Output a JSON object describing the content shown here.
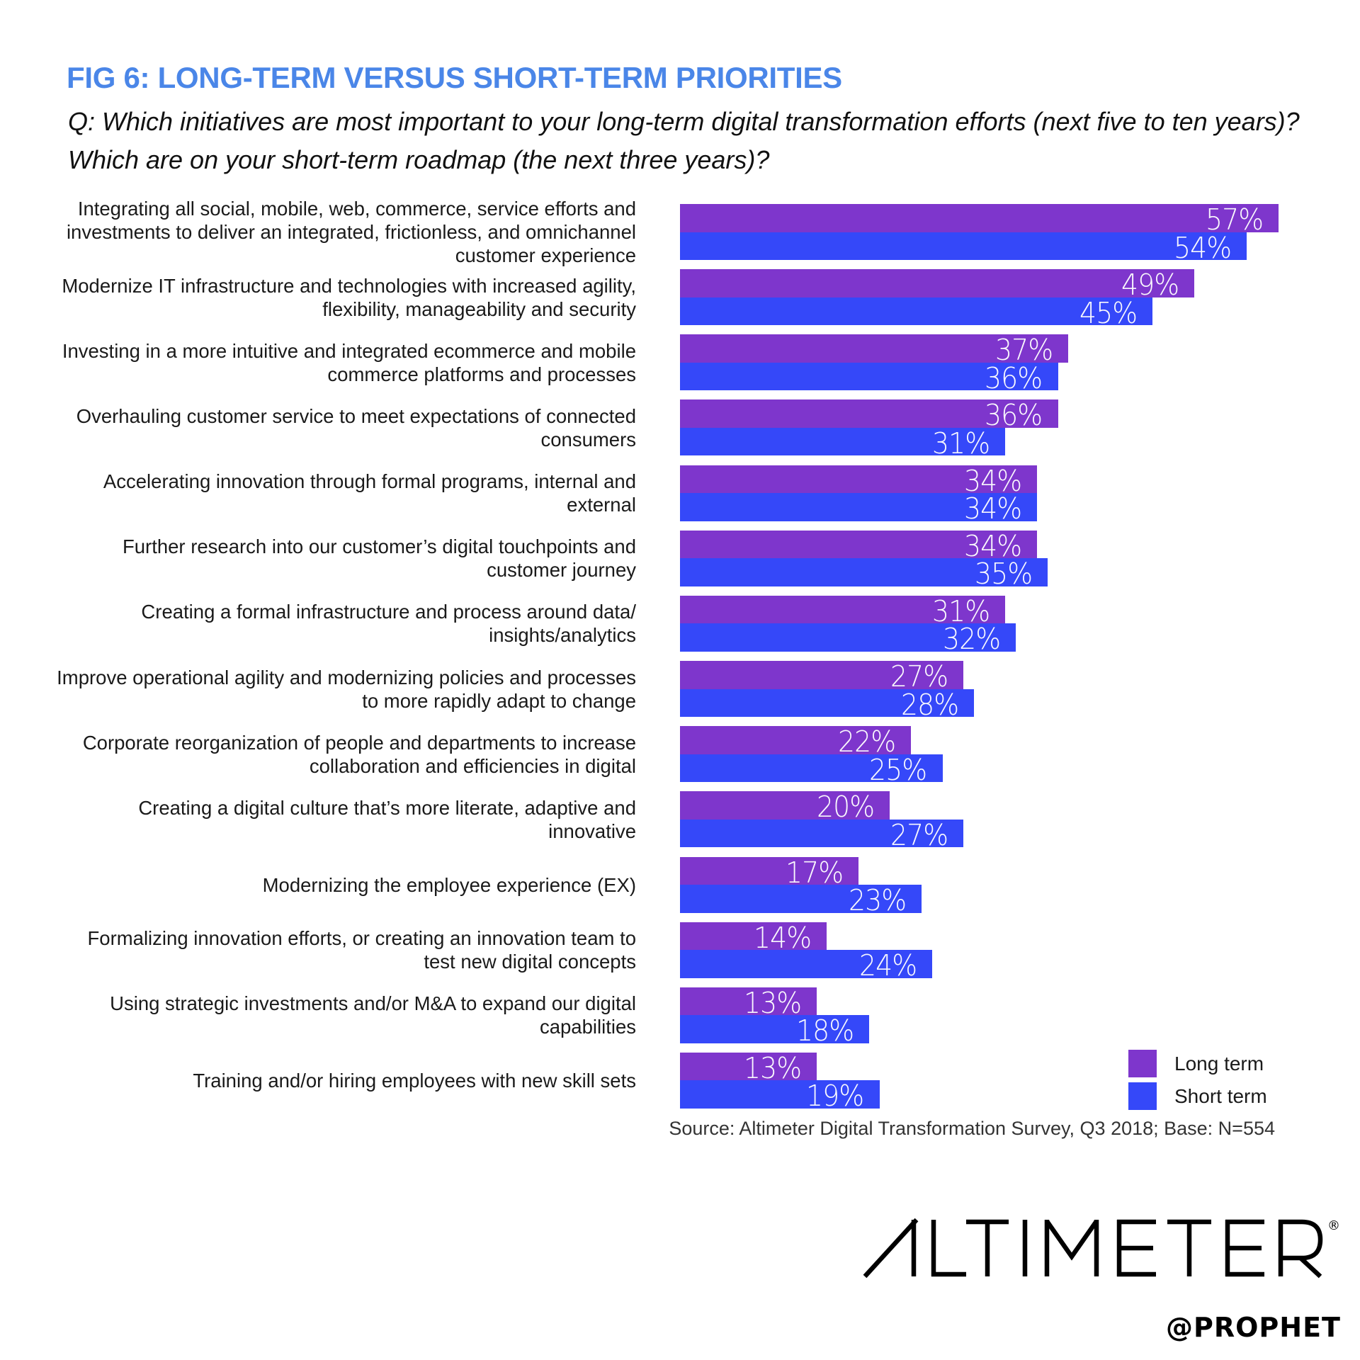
{
  "title": "FIG 6: LONG-TERM VERSUS SHORT-TERM PRIORITIES",
  "question": "Q: Which initiatives are most important to your long-term digital transformation efforts (next five to ten years)? Which are on your short-term roadmap (the next three years)?",
  "legend": {
    "long_term": "Long term",
    "short_term": "Short term"
  },
  "colors": {
    "title": "#4a86e8",
    "long_term": "#7e36cc",
    "short_term": "#3548f9"
  },
  "source": "Source: Altimeter Digital Transformation Survey, Q3 2018; Base: N=554",
  "logo": {
    "brand": "ALTIMETER",
    "registered": "®",
    "sub": "@PROPHET"
  },
  "rows": [
    {
      "label": "Integrating all social, mobile, web, commerce, service efforts and investments to deliver an integrated, frictionless, and omnichannel customer experience",
      "long": 57,
      "short": 54,
      "long_label": "57%",
      "short_label": "54%"
    },
    {
      "label": "Modernize IT infrastructure and technologies with increased agility, flexibility, manageability and security",
      "long": 49,
      "short": 45,
      "long_label": "49%",
      "short_label": "45%"
    },
    {
      "label": "Investing in a more intuitive and integrated ecommerce and mobile commerce platforms and processes",
      "long": 37,
      "short": 36,
      "long_label": "37%",
      "short_label": "36%"
    },
    {
      "label": "Overhauling customer service to meet expectations of connected consumers",
      "long": 36,
      "short": 31,
      "long_label": "36%",
      "short_label": "31%"
    },
    {
      "label": "Accelerating innovation through formal programs, internal and external",
      "long": 34,
      "short": 34,
      "long_label": "34%",
      "short_label": "34%"
    },
    {
      "label": "Further research into our customer’s digital touchpoints and customer journey",
      "long": 34,
      "short": 35,
      "long_label": "34%",
      "short_label": "35%"
    },
    {
      "label": "Creating a formal infrastructure and process around data/ insights/analytics",
      "long": 31,
      "short": 32,
      "long_label": "31%",
      "short_label": "32%"
    },
    {
      "label": "Improve operational agility and modernizing policies and processes to more rapidly adapt to change",
      "long": 27,
      "short": 28,
      "long_label": "27%",
      "short_label": "28%"
    },
    {
      "label": "Corporate reorganization of people and departments to increase collaboration and efficiencies in digital",
      "long": 22,
      "short": 25,
      "long_label": "22%",
      "short_label": "25%"
    },
    {
      "label": "Creating a digital culture that’s more literate, adaptive and innovative",
      "long": 20,
      "short": 27,
      "long_label": "20%",
      "short_label": "27%"
    },
    {
      "label": "Modernizing the employee experience (EX)",
      "long": 17,
      "short": 23,
      "long_label": "17%",
      "short_label": "23%"
    },
    {
      "label": "Formalizing innovation efforts, or creating an innovation team to test new digital concepts",
      "long": 14,
      "short": 24,
      "long_label": "14%",
      "short_label": "24%"
    },
    {
      "label": "Using strategic investments and/or M&A to expand our digital capabilities",
      "long": 13,
      "short": 18,
      "long_label": "13%",
      "short_label": "18%"
    },
    {
      "label": "Training and/or hiring employees with new skill sets",
      "long": 13,
      "short": 19,
      "long_label": "13%",
      "short_label": "19%"
    }
  ],
  "chart_data": {
    "type": "bar",
    "orientation": "horizontal",
    "title": "FIG 6: LONG-TERM VERSUS SHORT-TERM PRIORITIES",
    "subtitle": "Q: Which initiatives are most important to your long-term digital transformation efforts (next five to ten years)? Which are on your short-term roadmap (the next three years)?",
    "xlabel": "",
    "ylabel": "",
    "xlim": [
      0,
      60
    ],
    "grid": false,
    "legend_position": "bottom-right",
    "categories": [
      "Integrating all social, mobile, web, commerce, service efforts and investments to deliver an integrated, frictionless, and omnichannel customer experience",
      "Modernize IT infrastructure and technologies with increased agility, flexibility, manageability and security",
      "Investing in a more intuitive and integrated ecommerce and mobile commerce platforms and processes",
      "Overhauling customer service to meet expectations of connected consumers",
      "Accelerating innovation through formal programs, internal and external",
      "Further research into our customer’s digital touchpoints and customer journey",
      "Creating a formal infrastructure and process around data/ insights/analytics",
      "Improve operational agility and modernizing policies and processes to more rapidly adapt to change",
      "Corporate reorganization of people and departments to increase collaboration and efficiencies in digital",
      "Creating a digital culture that’s more literate, adaptive and innovative",
      "Modernizing the employee experience (EX)",
      "Formalizing innovation efforts, or creating an innovation team to test new digital concepts",
      "Using strategic investments and/or M&A to expand our digital capabilities",
      "Training and/or hiring employees with new skill sets"
    ],
    "series": [
      {
        "name": "Long term",
        "color": "#7e36cc",
        "values": [
          57,
          49,
          37,
          36,
          34,
          34,
          31,
          27,
          22,
          20,
          17,
          14,
          13,
          13
        ]
      },
      {
        "name": "Short term",
        "color": "#3548f9",
        "values": [
          54,
          45,
          36,
          31,
          34,
          35,
          32,
          28,
          25,
          27,
          23,
          24,
          18,
          19
        ]
      }
    ],
    "unit": "%",
    "annotations": [
      "Source: Altimeter Digital Transformation Survey, Q3 2018; Base: N=554"
    ]
  }
}
